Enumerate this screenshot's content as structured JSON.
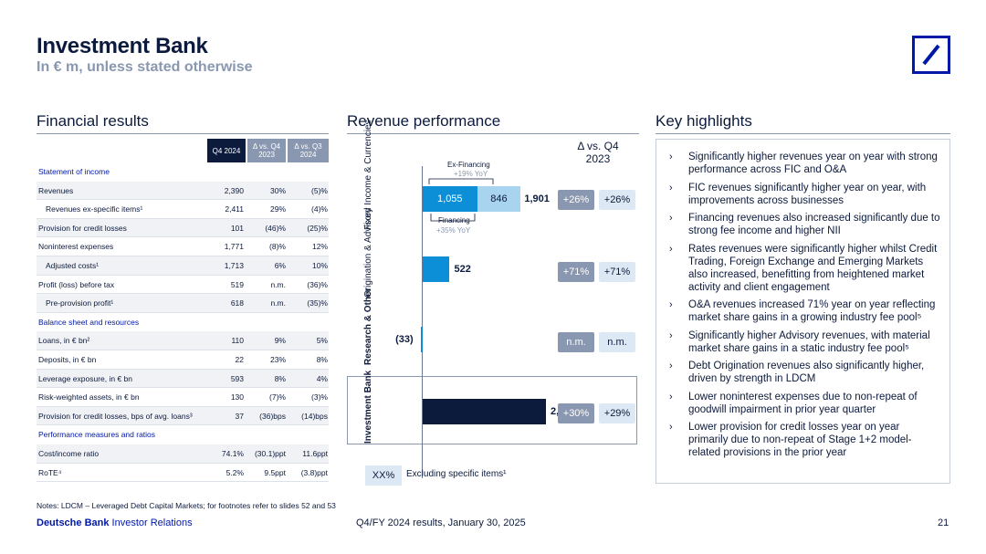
{
  "header": {
    "title": "Investment Bank",
    "subtitle": "In € m, unless stated otherwise"
  },
  "sections": {
    "financial": "Financial results",
    "revenue": "Revenue performance",
    "highlights": "Key highlights"
  },
  "table": {
    "headers": [
      "Q4 2024",
      "Δ vs. Q4 2023",
      "Δ vs. Q3 2024"
    ],
    "rows": [
      {
        "type": "section",
        "label": "Statement of income"
      },
      {
        "label": "Revenues",
        "v": "2,390",
        "d1": "30%",
        "d2": "(5)%"
      },
      {
        "label": "Revenues ex-specific items¹",
        "v": "2,411",
        "d1": "29%",
        "d2": "(4)%",
        "indent": true
      },
      {
        "label": "Provision for credit losses",
        "v": "101",
        "d1": "(46)%",
        "d2": "(25)%"
      },
      {
        "label": "Noninterest expenses",
        "v": "1,771",
        "d1": "(8)%",
        "d2": "12%"
      },
      {
        "label": "Adjusted costs¹",
        "v": "1,713",
        "d1": "6%",
        "d2": "10%",
        "indent": true
      },
      {
        "label": "Profit (loss) before tax",
        "v": "519",
        "d1": "n.m.",
        "d2": "(36)%"
      },
      {
        "label": "Pre-provision profit¹",
        "v": "618",
        "d1": "n.m.",
        "d2": "(35)%",
        "indent": true
      },
      {
        "type": "section",
        "label": "Balance sheet and resources"
      },
      {
        "label": "Loans, in € bn²",
        "v": "110",
        "d1": "9%",
        "d2": "5%"
      },
      {
        "label": "Deposits, in € bn",
        "v": "22",
        "d1": "23%",
        "d2": "8%"
      },
      {
        "label": "Leverage exposure, in € bn",
        "v": "593",
        "d1": "8%",
        "d2": "4%"
      },
      {
        "label": "Risk-weighted assets, in € bn",
        "v": "130",
        "d1": "(7)%",
        "d2": "(3)%"
      },
      {
        "label": "Provision for credit losses, bps of avg. loans³",
        "v": "37",
        "d1": "(36)bps",
        "d2": "(14)bps"
      },
      {
        "type": "section",
        "label": "Performance measures and ratios"
      },
      {
        "label": "Cost/income ratio",
        "v": "74.1%",
        "d1": "(30.1)ppt",
        "d2": "11.6ppt"
      },
      {
        "label": "RoTE⁴",
        "v": "5.2%",
        "d1": "9.5ppt",
        "d2": "(3.8)ppt"
      }
    ]
  },
  "chart_data": {
    "type": "bar",
    "delta_header": "Δ vs. Q4 2023",
    "categories": [
      "Fixed Income & Currencies",
      "Origination & Advisory",
      "Research & Other",
      "Investment Bank"
    ],
    "values": [
      1901,
      522,
      -33,
      2390
    ],
    "labels": [
      "1,901",
      "522",
      "(33)",
      "2,390"
    ],
    "fic_split": {
      "ex_financing": 1055,
      "financing": 846,
      "ex_financing_label": "1,055",
      "financing_label": "846"
    },
    "annotations": {
      "ex_financing": "Ex-Financing",
      "ex_financing_yoy": "+19% YoY",
      "financing": "Financing",
      "financing_yoy": "+35% YoY"
    },
    "delta": [
      "+26%",
      "+71%",
      "n.m.",
      "+30%"
    ],
    "delta_ex_specific": [
      "+26%",
      "+71%",
      "n.m.",
      "+29%"
    ],
    "legend": {
      "box": "XX%",
      "text": "Excluding specific items¹"
    },
    "colors": {
      "ex_financing": "#0c8fd6",
      "financing": "#a8d4f0",
      "oa": "#0c8fd6",
      "ro": "#0c8fd6",
      "ib": "#0c1a3c"
    }
  },
  "highlights": [
    "Significantly higher revenues year on year with strong performance across FIC and O&A",
    "FIC revenues significantly higher year on year, with improvements across businesses",
    "Financing revenues also increased significantly due to strong fee income and higher NII",
    "Rates revenues were significantly higher whilst Credit Trading, Foreign Exchange and Emerging Markets also increased, benefitting from heightened market activity and client engagement",
    "O&A revenues increased 71% year on year reflecting market share gains in a growing industry fee pool⁵",
    "Significantly higher Advisory revenues, with material market share gains in a static industry fee pool⁵",
    "Debt Origination revenues also significantly higher, driven by strength in LDCM",
    "Lower noninterest expenses due to non-repeat of goodwill impairment in prior year quarter",
    "Lower provision for credit losses year on year primarily due to non-repeat of Stage 1+2 model-related provisions in the prior year"
  ],
  "notes": "Notes: LDCM – Leveraged Debt Capital Markets; for footnotes refer to slides 52 and 53",
  "footer": {
    "brand_bold": "Deutsche Bank",
    "brand_rest": " Investor Relations",
    "center": "Q4/FY 2024 results, January 30, 2025",
    "page": "21"
  }
}
